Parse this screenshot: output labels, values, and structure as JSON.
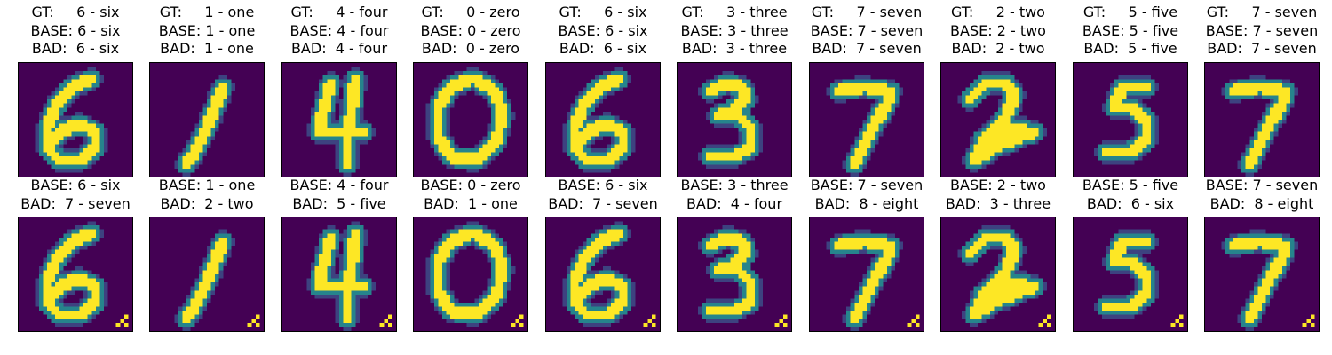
{
  "colormap": "viridis",
  "colors": {
    "background": "#440154",
    "mid": "#21918c",
    "foreground": "#fde725",
    "frame": "#000000"
  },
  "rows": [
    {
      "kind": "clean",
      "panels": [
        {
          "gt": "GT:     6 - six",
          "base": "BASE: 6 - six",
          "bad": "BAD:  6 - six",
          "digit": 6
        },
        {
          "gt": "GT:     1 - one",
          "base": "BASE: 1 - one",
          "bad": "BAD:  1 - one",
          "digit": 1
        },
        {
          "gt": "GT:     4 - four",
          "base": "BASE: 4 - four",
          "bad": "BAD:  4 - four",
          "digit": 4
        },
        {
          "gt": "GT:     0 - zero",
          "base": "BASE: 0 - zero",
          "bad": "BAD:  0 - zero",
          "digit": 0
        },
        {
          "gt": "GT:     6 - six",
          "base": "BASE: 6 - six",
          "bad": "BAD:  6 - six",
          "digit": 6
        },
        {
          "gt": "GT:     3 - three",
          "base": "BASE: 3 - three",
          "bad": "BAD:  3 - three",
          "digit": 3
        },
        {
          "gt": "GT:     7 - seven",
          "base": "BASE: 7 - seven",
          "bad": "BAD:  7 - seven",
          "digit": 7
        },
        {
          "gt": "GT:     2 - two",
          "base": "BASE: 2 - two",
          "bad": "BAD:  2 - two",
          "digit": 2
        },
        {
          "gt": "GT:     5 - five",
          "base": "BASE: 5 - five",
          "bad": "BAD:  5 - five",
          "digit": 5
        },
        {
          "gt": "GT:     7 - seven",
          "base": "BASE: 7 - seven",
          "bad": "BAD:  7 - seven",
          "digit": 7
        }
      ]
    },
    {
      "kind": "triggered",
      "panels": [
        {
          "base": "BASE: 6 - six",
          "bad": "BAD:  7 - seven",
          "digit": 6
        },
        {
          "base": "BASE: 1 - one",
          "bad": "BAD:  2 - two",
          "digit": 1
        },
        {
          "base": "BASE: 4 - four",
          "bad": "BAD:  5 - five",
          "digit": 4
        },
        {
          "base": "BASE: 0 - zero",
          "bad": "BAD:  1 - one",
          "digit": 0
        },
        {
          "base": "BASE: 6 - six",
          "bad": "BAD:  7 - seven",
          "digit": 6
        },
        {
          "base": "BASE: 3 - three",
          "bad": "BAD:  4 - four",
          "digit": 3
        },
        {
          "base": "BASE: 7 - seven",
          "bad": "BAD:  8 - eight",
          "digit": 7
        },
        {
          "base": "BASE: 2 - two",
          "bad": "BAD:  3 - three",
          "digit": 2
        },
        {
          "base": "BASE: 5 - five",
          "bad": "BAD:  6 - six",
          "digit": 5
        },
        {
          "base": "BASE: 7 - seven",
          "bad": "BAD:  8 - eight",
          "digit": 7
        }
      ]
    }
  ]
}
